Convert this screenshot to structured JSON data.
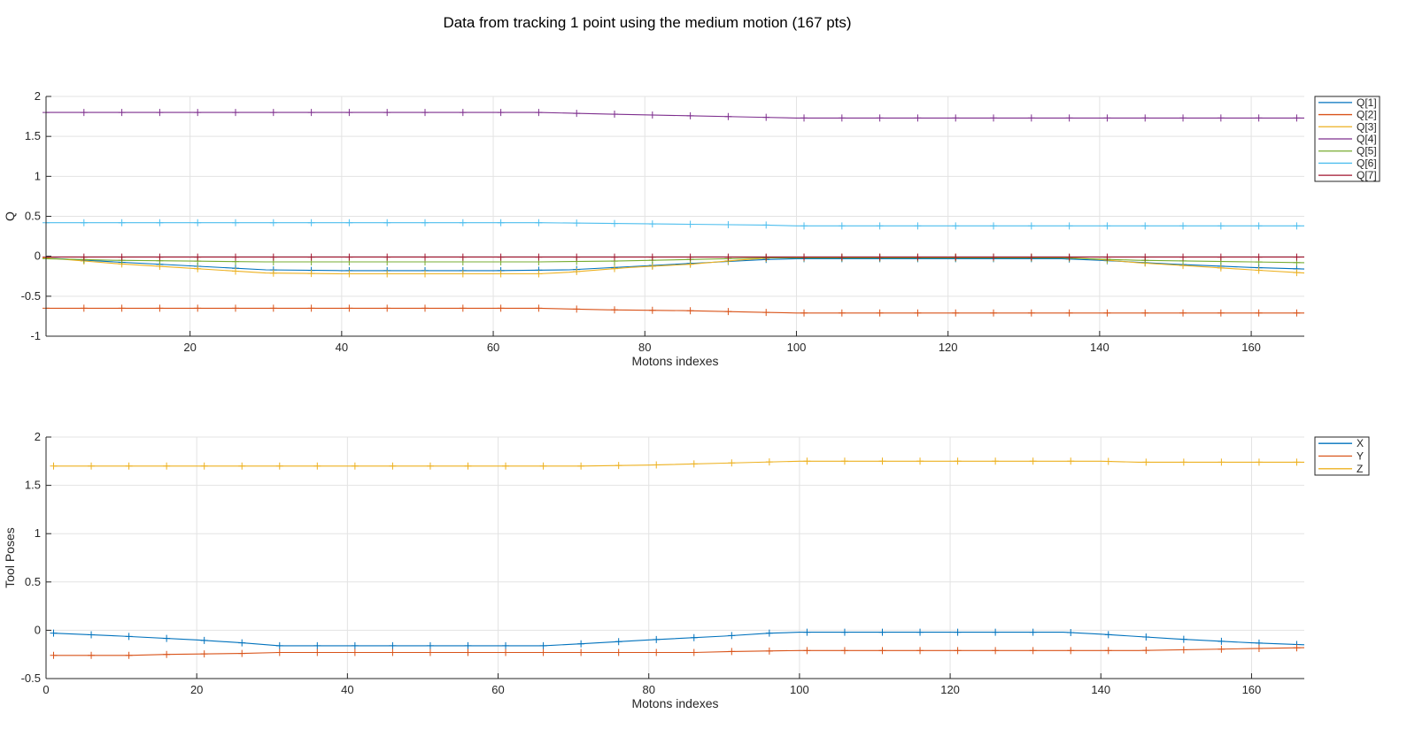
{
  "figure": {
    "title": "Data from tracking 1 point using the medium motion (167 pts)"
  },
  "chart_data": [
    {
      "type": "line",
      "xlabel": "Motons indexes",
      "ylabel": "Q",
      "xlim": [
        1,
        167
      ],
      "ylim": [
        -1,
        2
      ],
      "xticks": [
        20,
        40,
        60,
        80,
        100,
        120,
        140,
        160
      ],
      "yticks": [
        -1,
        -0.5,
        0,
        0.5,
        1,
        1.5,
        2
      ],
      "grid": true,
      "legend_position": "outside-top-right",
      "marker": "+",
      "marker_every": 5,
      "series": [
        {
          "name": "Q[1]",
          "color": "#0072BD",
          "points": [
            [
              1,
              -0.02
            ],
            [
              10,
              -0.07
            ],
            [
              20,
              -0.12
            ],
            [
              30,
              -0.17
            ],
            [
              40,
              -0.18
            ],
            [
              60,
              -0.18
            ],
            [
              70,
              -0.17
            ],
            [
              80,
              -0.12
            ],
            [
              90,
              -0.07
            ],
            [
              96,
              -0.04
            ],
            [
              100,
              -0.03
            ],
            [
              135,
              -0.03
            ],
            [
              140,
              -0.05
            ],
            [
              150,
              -0.1
            ],
            [
              160,
              -0.14
            ],
            [
              167,
              -0.16
            ]
          ]
        },
        {
          "name": "Q[2]",
          "color": "#D95319",
          "points": [
            [
              1,
              -0.65
            ],
            [
              20,
              -0.65
            ],
            [
              66,
              -0.65
            ],
            [
              75,
              -0.67
            ],
            [
              85,
              -0.68
            ],
            [
              95,
              -0.7
            ],
            [
              100,
              -0.71
            ],
            [
              167,
              -0.71
            ]
          ]
        },
        {
          "name": "Q[3]",
          "color": "#EDB120",
          "points": [
            [
              1,
              -0.02
            ],
            [
              10,
              -0.09
            ],
            [
              20,
              -0.15
            ],
            [
              30,
              -0.21
            ],
            [
              40,
              -0.22
            ],
            [
              66,
              -0.22
            ],
            [
              70,
              -0.2
            ],
            [
              78,
              -0.14
            ],
            [
              86,
              -0.1
            ],
            [
              92,
              -0.05
            ],
            [
              98,
              -0.01
            ],
            [
              135,
              -0.01
            ],
            [
              140,
              -0.04
            ],
            [
              145,
              -0.08
            ],
            [
              150,
              -0.11
            ],
            [
              160,
              -0.17
            ],
            [
              167,
              -0.21
            ]
          ]
        },
        {
          "name": "Q[4]",
          "color": "#7E2F8E",
          "points": [
            [
              1,
              1.8
            ],
            [
              20,
              1.8
            ],
            [
              66,
              1.8
            ],
            [
              75,
              1.78
            ],
            [
              85,
              1.76
            ],
            [
              95,
              1.74
            ],
            [
              100,
              1.73
            ],
            [
              167,
              1.73
            ]
          ]
        },
        {
          "name": "Q[5]",
          "color": "#77AC30",
          "points": [
            [
              1,
              -0.03
            ],
            [
              10,
              -0.05
            ],
            [
              20,
              -0.06
            ],
            [
              30,
              -0.07
            ],
            [
              66,
              -0.07
            ],
            [
              76,
              -0.06
            ],
            [
              86,
              -0.04
            ],
            [
              96,
              -0.02
            ],
            [
              100,
              -0.02
            ],
            [
              135,
              -0.02
            ],
            [
              145,
              -0.05
            ],
            [
              160,
              -0.07
            ],
            [
              167,
              -0.08
            ]
          ]
        },
        {
          "name": "Q[6]",
          "color": "#4DBEEE",
          "points": [
            [
              1,
              0.42
            ],
            [
              66,
              0.42
            ],
            [
              76,
              0.41
            ],
            [
              86,
              0.4
            ],
            [
              96,
              0.39
            ],
            [
              100,
              0.38
            ],
            [
              167,
              0.38
            ]
          ]
        },
        {
          "name": "Q[7]",
          "color": "#A2142F",
          "points": [
            [
              1,
              -0.01
            ],
            [
              167,
              -0.01
            ]
          ]
        }
      ]
    },
    {
      "type": "line",
      "xlabel": "Motons indexes",
      "ylabel": "Tool Poses",
      "xlim": [
        0,
        167
      ],
      "ylim": [
        -0.5,
        2
      ],
      "xticks": [
        0,
        20,
        40,
        60,
        80,
        100,
        120,
        140,
        160
      ],
      "yticks": [
        -0.5,
        0,
        0.5,
        1,
        1.5,
        2
      ],
      "grid": true,
      "legend_position": "outside-top-right",
      "marker": "+",
      "marker_every": 5,
      "series": [
        {
          "name": "X",
          "color": "#0072BD",
          "points": [
            [
              1,
              -0.03
            ],
            [
              10,
              -0.06
            ],
            [
              20,
              -0.1
            ],
            [
              26,
              -0.13
            ],
            [
              31,
              -0.16
            ],
            [
              66,
              -0.16
            ],
            [
              71,
              -0.14
            ],
            [
              80,
              -0.1
            ],
            [
              90,
              -0.06
            ],
            [
              96,
              -0.03
            ],
            [
              100,
              -0.02
            ],
            [
              135,
              -0.02
            ],
            [
              140,
              -0.04
            ],
            [
              150,
              -0.09
            ],
            [
              160,
              -0.13
            ],
            [
              167,
              -0.15
            ]
          ]
        },
        {
          "name": "Y",
          "color": "#D95319",
          "points": [
            [
              1,
              -0.26
            ],
            [
              11,
              -0.26
            ],
            [
              16,
              -0.25
            ],
            [
              26,
              -0.24
            ],
            [
              31,
              -0.23
            ],
            [
              86,
              -0.23
            ],
            [
              91,
              -0.22
            ],
            [
              100,
              -0.21
            ],
            [
              145,
              -0.21
            ],
            [
              160,
              -0.19
            ],
            [
              167,
              -0.18
            ]
          ]
        },
        {
          "name": "Z",
          "color": "#EDB120",
          "points": [
            [
              1,
              1.7
            ],
            [
              71,
              1.7
            ],
            [
              80,
              1.71
            ],
            [
              90,
              1.73
            ],
            [
              100,
              1.75
            ],
            [
              140,
              1.75
            ],
            [
              145,
              1.74
            ],
            [
              167,
              1.74
            ]
          ]
        }
      ]
    }
  ]
}
